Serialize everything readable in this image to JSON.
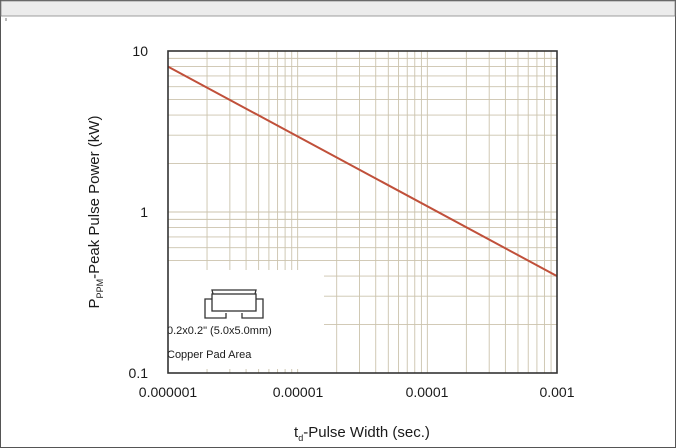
{
  "chart_data": {
    "type": "line",
    "scale": {
      "x": "log",
      "y": "log"
    },
    "xlim": [
      1e-06,
      0.001
    ],
    "ylim": [
      0.1,
      10
    ],
    "x_tick_labels": [
      "0.000001",
      "0.00001",
      "0.0001",
      "0.001"
    ],
    "y_tick_labels": [
      "0.1",
      "1",
      "10"
    ],
    "xlabel": {
      "main": "t",
      "sub": "d",
      "rest": "-Pulse Width (sec.)"
    },
    "ylabel": {
      "main": "P",
      "sub": "PPM",
      "rest": "-Peak Pulse Power (kW)"
    },
    "grid": true,
    "series": [
      {
        "x": [
          1e-06,
          0.001
        ],
        "y": [
          8.0,
          0.4
        ]
      }
    ],
    "inset": {
      "line1": "0.2x0.2\" (5.0x5.0mm)",
      "line2": "Copper Pad Area"
    },
    "colors": {
      "line": "#c0503a",
      "grid": "#cbc3ad",
      "axis": "#333333"
    }
  }
}
